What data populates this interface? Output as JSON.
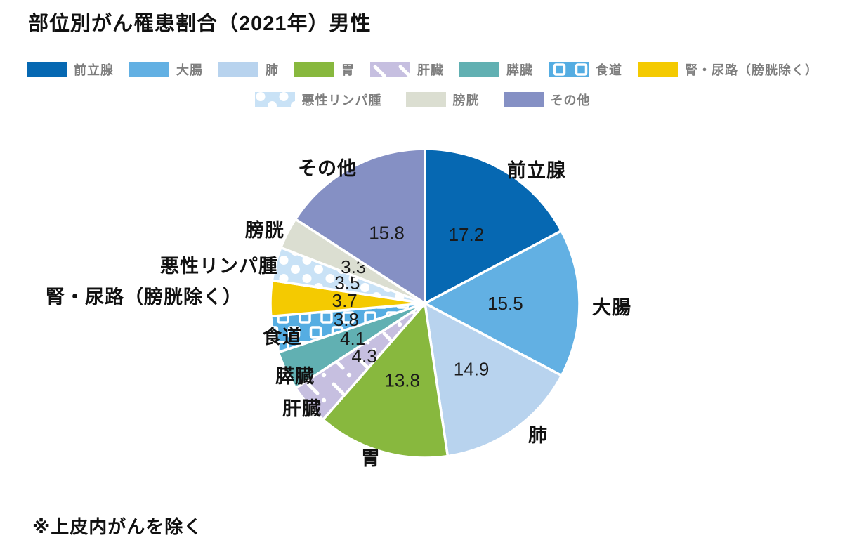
{
  "title": "部位別がん罹患割合（2021年）男性",
  "footnote": "※上皮内がんを除く",
  "chart_data": {
    "type": "pie",
    "title": "部位別がん罹患割合（2021年）男性",
    "unit": "%",
    "start_angle_deg": 0,
    "direction": "clockwise",
    "legend_position": "top",
    "legend_rows": [
      [
        0,
        1,
        2,
        3,
        4,
        5,
        6,
        7
      ],
      [
        8,
        9,
        10
      ]
    ],
    "items": [
      {
        "label": "前立腺",
        "value": 17.2,
        "color": "#0668b2",
        "pattern": "solid"
      },
      {
        "label": "大腸",
        "value": 15.5,
        "color": "#62b0e3",
        "pattern": "solid"
      },
      {
        "label": "肺",
        "value": 14.9,
        "color": "#b8d3ee",
        "pattern": "solid"
      },
      {
        "label": "胃",
        "value": 13.8,
        "color": "#88b83e",
        "pattern": "solid"
      },
      {
        "label": "肝臓",
        "value": 4.3,
        "color": "#c6bfe0",
        "pattern": "diagonal-dash",
        "pattern_fg": "#ffffff"
      },
      {
        "label": "膵臓",
        "value": 4.1,
        "color": "#61b0b2",
        "pattern": "solid"
      },
      {
        "label": "食道",
        "value": 3.8,
        "color": "#55ade2",
        "pattern": "squares",
        "pattern_fg": "#ffffff"
      },
      {
        "label": "腎・尿路（膀胱除く）",
        "value": 3.7,
        "color": "#f4ca01",
        "pattern": "solid"
      },
      {
        "label": "悪性リンパ腫",
        "value": 3.5,
        "color": "#c9e2f6",
        "pattern": "dots",
        "pattern_fg": "#ffffff"
      },
      {
        "label": "膀胱",
        "value": 3.3,
        "color": "#dbded1",
        "pattern": "solid"
      },
      {
        "label": "その他",
        "value": 15.8,
        "color": "#8590c4",
        "pattern": "solid"
      }
    ]
  }
}
